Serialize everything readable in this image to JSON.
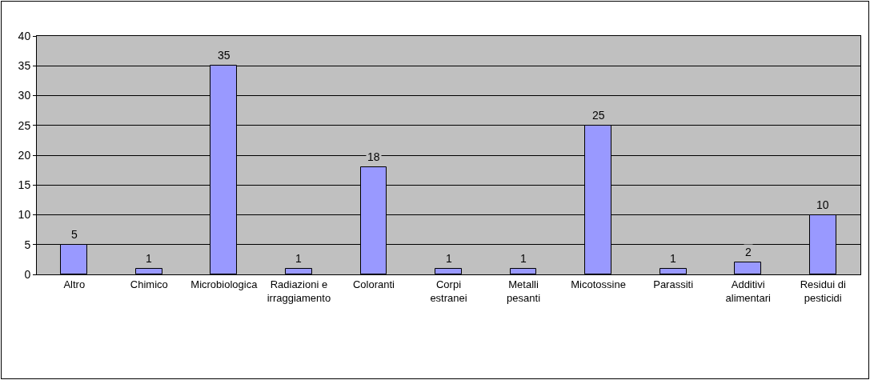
{
  "chart_data": {
    "type": "bar",
    "categories": [
      "Altro",
      "Chimico",
      "Microbiologica",
      "Radiazioni e irraggiamento",
      "Coloranti",
      "Corpi estranei",
      "Metalli pesanti",
      "Micotossine",
      "Parassiti",
      "Additivi alimentari",
      "Residui di pesticidi"
    ],
    "values": [
      5,
      1,
      35,
      1,
      18,
      1,
      1,
      25,
      1,
      2,
      10
    ],
    "color": "#9999ff",
    "ylim": [
      0,
      40
    ],
    "yticks": [
      0,
      5,
      10,
      15,
      20,
      25,
      30,
      35,
      40
    ],
    "grid": "y",
    "data_labels": true,
    "legend": false
  }
}
